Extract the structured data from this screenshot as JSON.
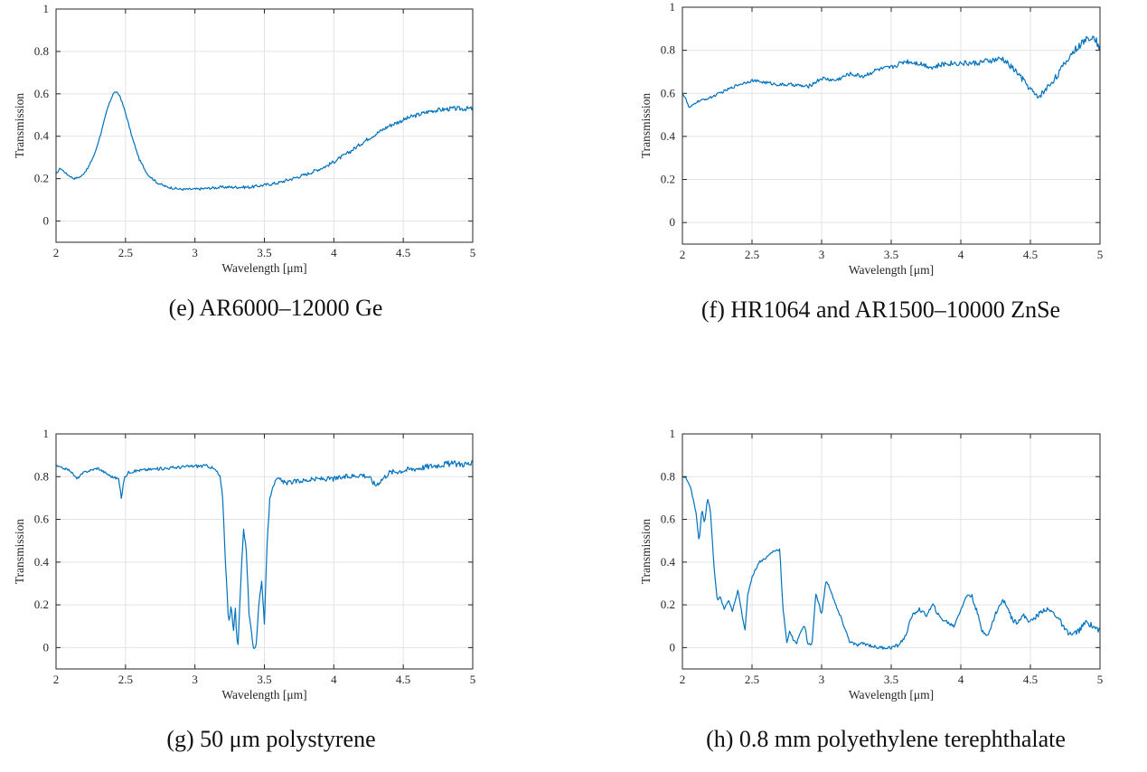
{
  "colors": {
    "line": "#0072BD",
    "grid": "#e3e3e3",
    "axis": "#262626"
  },
  "chart_data": [
    {
      "type": "line",
      "caption": "(e) AR6000–12000 Ge",
      "xlabel": "Wavelength [μm]",
      "ylabel": "Transmission",
      "xlim": [
        2,
        5
      ],
      "ylim": [
        -0.1,
        1
      ],
      "xticks": [
        2,
        2.5,
        3,
        3.5,
        4,
        4.5,
        5
      ],
      "yticks": [
        0,
        0.2,
        0.4,
        0.6,
        0.8,
        1
      ],
      "xtick_labels": [
        "2",
        "2.5",
        "3",
        "3.5",
        "4",
        "4.5",
        "5"
      ],
      "ytick_labels": [
        "0",
        "0.2",
        "0.4",
        "0.6",
        "0.8",
        "1"
      ],
      "grid": true,
      "noise": 0.008,
      "series": [
        {
          "x": [
            2.0,
            2.03,
            2.08,
            2.13,
            2.18,
            2.23,
            2.28,
            2.33,
            2.37,
            2.41,
            2.43,
            2.46,
            2.5,
            2.55,
            2.6,
            2.66,
            2.73,
            2.8,
            2.9,
            3.0,
            3.2,
            3.4,
            3.6,
            3.8,
            3.95,
            4.1,
            4.25,
            4.4,
            4.55,
            4.7,
            4.85,
            5.0
          ],
          "y": [
            0.22,
            0.25,
            0.22,
            0.2,
            0.21,
            0.25,
            0.32,
            0.43,
            0.53,
            0.6,
            0.61,
            0.59,
            0.51,
            0.39,
            0.29,
            0.22,
            0.18,
            0.16,
            0.15,
            0.15,
            0.16,
            0.16,
            0.18,
            0.22,
            0.26,
            0.32,
            0.39,
            0.45,
            0.49,
            0.52,
            0.53,
            0.53
          ]
        }
      ]
    },
    {
      "type": "line",
      "caption": "(f) HR1064 and AR1500–10000 ZnSe",
      "xlabel": "Wavelength [μm]",
      "ylabel": "Transmission",
      "xlim": [
        2,
        5
      ],
      "ylim": [
        -0.1,
        1
      ],
      "xticks": [
        2,
        2.5,
        3,
        3.5,
        4,
        4.5,
        5
      ],
      "yticks": [
        0,
        0.2,
        0.4,
        0.6,
        0.8,
        1
      ],
      "xtick_labels": [
        "2",
        "2.5",
        "3",
        "3.5",
        "4",
        "4.5",
        "5"
      ],
      "ytick_labels": [
        "0",
        "0.2",
        "0.4",
        "0.6",
        "0.8",
        "1"
      ],
      "grid": true,
      "noise": 0.012,
      "series": [
        {
          "x": [
            2.0,
            2.02,
            2.05,
            2.1,
            2.2,
            2.3,
            2.4,
            2.5,
            2.6,
            2.7,
            2.8,
            2.9,
            3.0,
            3.1,
            3.2,
            3.3,
            3.4,
            3.5,
            3.6,
            3.7,
            3.8,
            3.9,
            4.0,
            4.1,
            4.2,
            4.3,
            4.4,
            4.5,
            4.55,
            4.6,
            4.7,
            4.8,
            4.9,
            4.95,
            5.0
          ],
          "y": [
            0.6,
            0.58,
            0.53,
            0.56,
            0.58,
            0.61,
            0.64,
            0.66,
            0.65,
            0.64,
            0.64,
            0.63,
            0.67,
            0.66,
            0.69,
            0.68,
            0.71,
            0.72,
            0.75,
            0.74,
            0.72,
            0.74,
            0.74,
            0.74,
            0.75,
            0.76,
            0.7,
            0.62,
            0.58,
            0.61,
            0.69,
            0.79,
            0.85,
            0.87,
            0.81
          ]
        }
      ]
    },
    {
      "type": "line",
      "caption": "(g) 50 μm polystyrene",
      "xlabel": "Wavelength [μm]",
      "ylabel": "Transmission",
      "xlim": [
        2,
        5
      ],
      "ylim": [
        -0.1,
        1
      ],
      "xticks": [
        2,
        2.5,
        3,
        3.5,
        4,
        4.5,
        5
      ],
      "yticks": [
        0,
        0.2,
        0.4,
        0.6,
        0.8,
        1
      ],
      "xtick_labels": [
        "2",
        "2.5",
        "3",
        "3.5",
        "4",
        "4.5",
        "5"
      ],
      "ytick_labels": [
        "0",
        "0.2",
        "0.4",
        "0.6",
        "0.8",
        "1"
      ],
      "grid": true,
      "noise": 0.011,
      "series": [
        {
          "x": [
            2.0,
            2.1,
            2.15,
            2.2,
            2.3,
            2.4,
            2.45,
            2.47,
            2.49,
            2.52,
            2.6,
            2.8,
            3.0,
            3.1,
            3.15,
            3.18,
            3.2,
            3.22,
            3.24,
            3.25,
            3.26,
            3.28,
            3.29,
            3.3,
            3.31,
            3.33,
            3.35,
            3.37,
            3.39,
            3.42,
            3.44,
            3.46,
            3.48,
            3.5,
            3.52,
            3.54,
            3.56,
            3.6,
            3.65,
            3.75,
            3.9,
            4.0,
            4.1,
            4.2,
            4.25,
            4.3,
            4.4,
            4.6,
            4.8,
            5.0
          ],
          "y": [
            0.85,
            0.83,
            0.79,
            0.82,
            0.84,
            0.8,
            0.79,
            0.7,
            0.79,
            0.82,
            0.83,
            0.84,
            0.85,
            0.85,
            0.83,
            0.8,
            0.7,
            0.4,
            0.15,
            0.12,
            0.2,
            0.06,
            0.21,
            0.05,
            0.01,
            0.3,
            0.56,
            0.45,
            0.15,
            0.0,
            0.01,
            0.2,
            0.32,
            0.1,
            0.5,
            0.7,
            0.76,
            0.79,
            0.77,
            0.78,
            0.79,
            0.79,
            0.8,
            0.81,
            0.8,
            0.76,
            0.82,
            0.84,
            0.86,
            0.86
          ]
        }
      ]
    },
    {
      "type": "line",
      "caption": "(h) 0.8 mm polyethylene terephthalate",
      "xlabel": "Wavelength [μm]",
      "ylabel": "Transmission",
      "xlim": [
        2,
        5
      ],
      "ylim": [
        -0.1,
        1
      ],
      "xticks": [
        2,
        2.5,
        3,
        3.5,
        4,
        4.5,
        5
      ],
      "yticks": [
        0,
        0.2,
        0.4,
        0.6,
        0.8,
        1
      ],
      "xtick_labels": [
        "2",
        "2.5",
        "3",
        "3.5",
        "4",
        "4.5",
        "5"
      ],
      "ytick_labels": [
        "0",
        "0.2",
        "0.4",
        "0.6",
        "0.8",
        "1"
      ],
      "grid": true,
      "noise": 0.009,
      "series": [
        {
          "x": [
            2.0,
            2.03,
            2.06,
            2.1,
            2.12,
            2.14,
            2.16,
            2.18,
            2.2,
            2.23,
            2.25,
            2.27,
            2.3,
            2.33,
            2.36,
            2.4,
            2.43,
            2.45,
            2.47,
            2.5,
            2.55,
            2.6,
            2.65,
            2.7,
            2.72,
            2.75,
            2.77,
            2.8,
            2.82,
            2.85,
            2.88,
            2.9,
            2.93,
            2.96,
            3.0,
            3.03,
            3.06,
            3.1,
            3.15,
            3.2,
            3.25,
            3.3,
            3.4,
            3.5,
            3.55,
            3.6,
            3.65,
            3.7,
            3.75,
            3.8,
            3.85,
            3.9,
            3.95,
            4.0,
            4.05,
            4.08,
            4.12,
            4.15,
            4.2,
            4.25,
            4.3,
            4.33,
            4.37,
            4.4,
            4.45,
            4.5,
            4.55,
            4.6,
            4.65,
            4.7,
            4.75,
            4.8,
            4.85,
            4.9,
            4.95,
            5.0
          ],
          "y": [
            0.8,
            0.79,
            0.75,
            0.62,
            0.49,
            0.65,
            0.58,
            0.7,
            0.65,
            0.35,
            0.22,
            0.24,
            0.18,
            0.22,
            0.17,
            0.27,
            0.15,
            0.08,
            0.25,
            0.33,
            0.4,
            0.42,
            0.45,
            0.46,
            0.2,
            0.02,
            0.08,
            0.03,
            0.02,
            0.08,
            0.1,
            0.02,
            0.01,
            0.26,
            0.15,
            0.31,
            0.28,
            0.2,
            0.12,
            0.03,
            0.01,
            0.02,
            0.0,
            0.0,
            0.01,
            0.05,
            0.15,
            0.18,
            0.15,
            0.2,
            0.14,
            0.12,
            0.1,
            0.18,
            0.25,
            0.24,
            0.16,
            0.08,
            0.06,
            0.16,
            0.22,
            0.2,
            0.13,
            0.12,
            0.15,
            0.12,
            0.15,
            0.18,
            0.17,
            0.14,
            0.08,
            0.06,
            0.08,
            0.12,
            0.1,
            0.08
          ]
        }
      ]
    }
  ]
}
